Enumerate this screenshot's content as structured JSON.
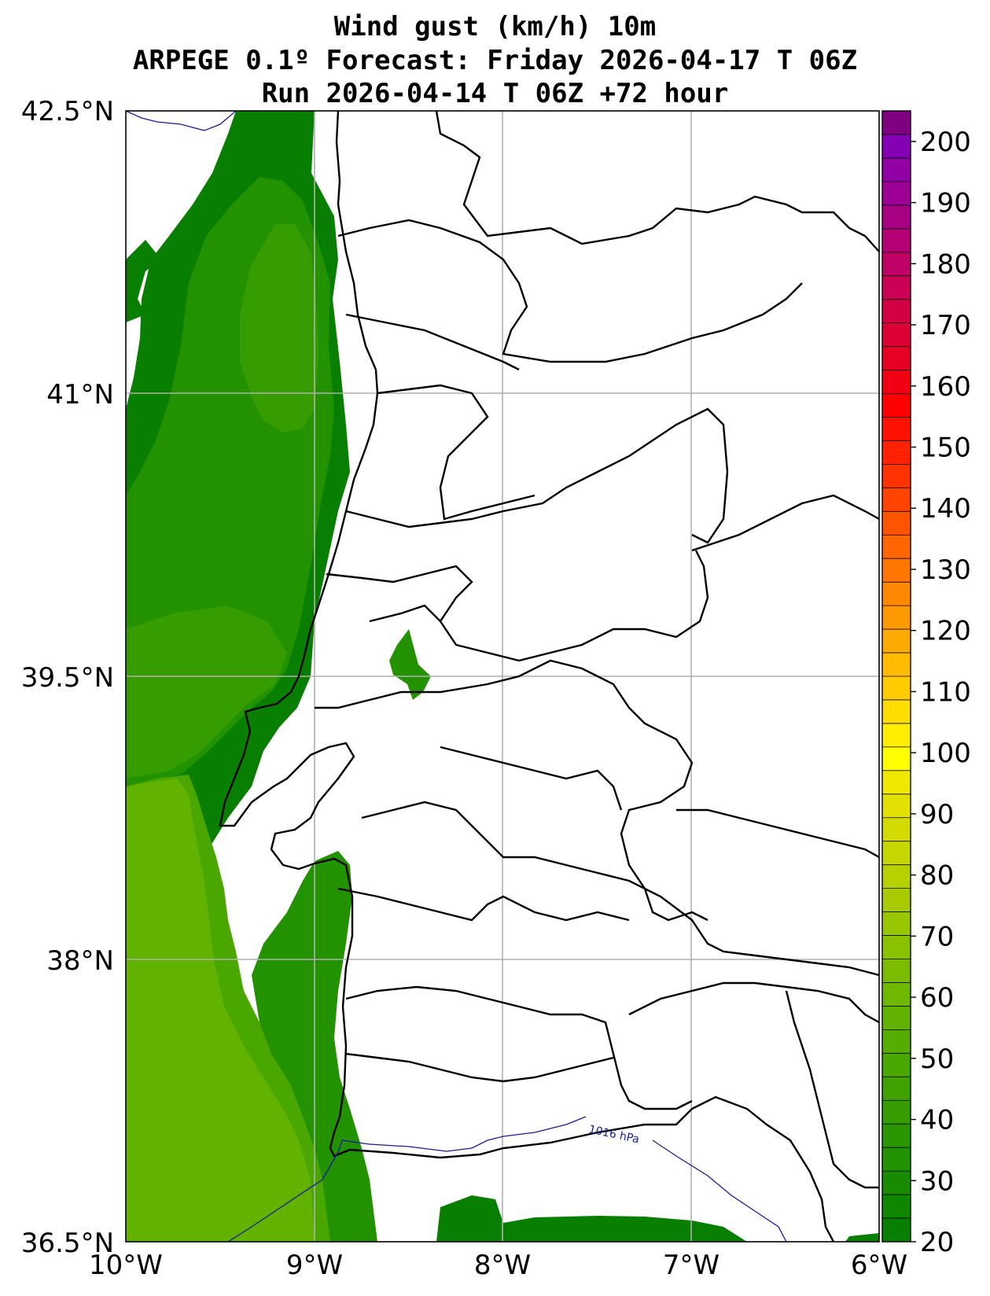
{
  "title": {
    "line1": "Wind gust (km/h) 10m",
    "line2": "ARPEGE 0.1º Forecast: Friday 2026-04-17 T 06Z",
    "line3": "Run 2026-04-14 T 06Z +72 hour"
  },
  "axes": {
    "lat_labels": [
      "42.5°N",
      "41°N",
      "39.5°N",
      "38°N",
      "36.5°N"
    ],
    "lon_labels": [
      "10°W",
      "9°W",
      "8°W",
      "7°W",
      "6°W"
    ]
  },
  "isobar": {
    "label": "1016 hPa"
  },
  "colorbar": {
    "min": 20,
    "max": 205,
    "labels": [
      "20",
      "30",
      "40",
      "50",
      "60",
      "70",
      "80",
      "90",
      "100",
      "110",
      "120",
      "130",
      "140",
      "150",
      "160",
      "170",
      "180",
      "190",
      "200"
    ],
    "colors": [
      "#087f00",
      "#0f8500",
      "#188b00",
      "#229200",
      "#2b9700",
      "#359d00",
      "#40a200",
      "#4aa700",
      "#56ad00",
      "#62b300",
      "#6eb800",
      "#7bbc00",
      "#8ac200",
      "#98c600",
      "#a7cb00",
      "#b6d000",
      "#c5d600",
      "#d4db00",
      "#e2e100",
      "#f1e800",
      "#ffff00",
      "#ffee00",
      "#ffdd00",
      "#ffcc00",
      "#ffbb00",
      "#ffaa00",
      "#ff9900",
      "#ff8800",
      "#ff7700",
      "#ff6600",
      "#ff5500",
      "#ff4400",
      "#ff3300",
      "#ff2200",
      "#ff1100",
      "#ff0000",
      "#f00012",
      "#e60024",
      "#dd0034",
      "#d30044",
      "#c90054",
      "#bf0064",
      "#b40074",
      "#a80084",
      "#9c0094",
      "#9000a4",
      "#8400b4",
      "#800080"
    ]
  },
  "colors": {
    "level_20": "#087f00",
    "level_30": "#229200",
    "level_35": "#359d00",
    "level_40": "#4aa700",
    "level_45": "#62b300",
    "isobar": "#1a1aa0",
    "grid": "#b0b0b0"
  }
}
